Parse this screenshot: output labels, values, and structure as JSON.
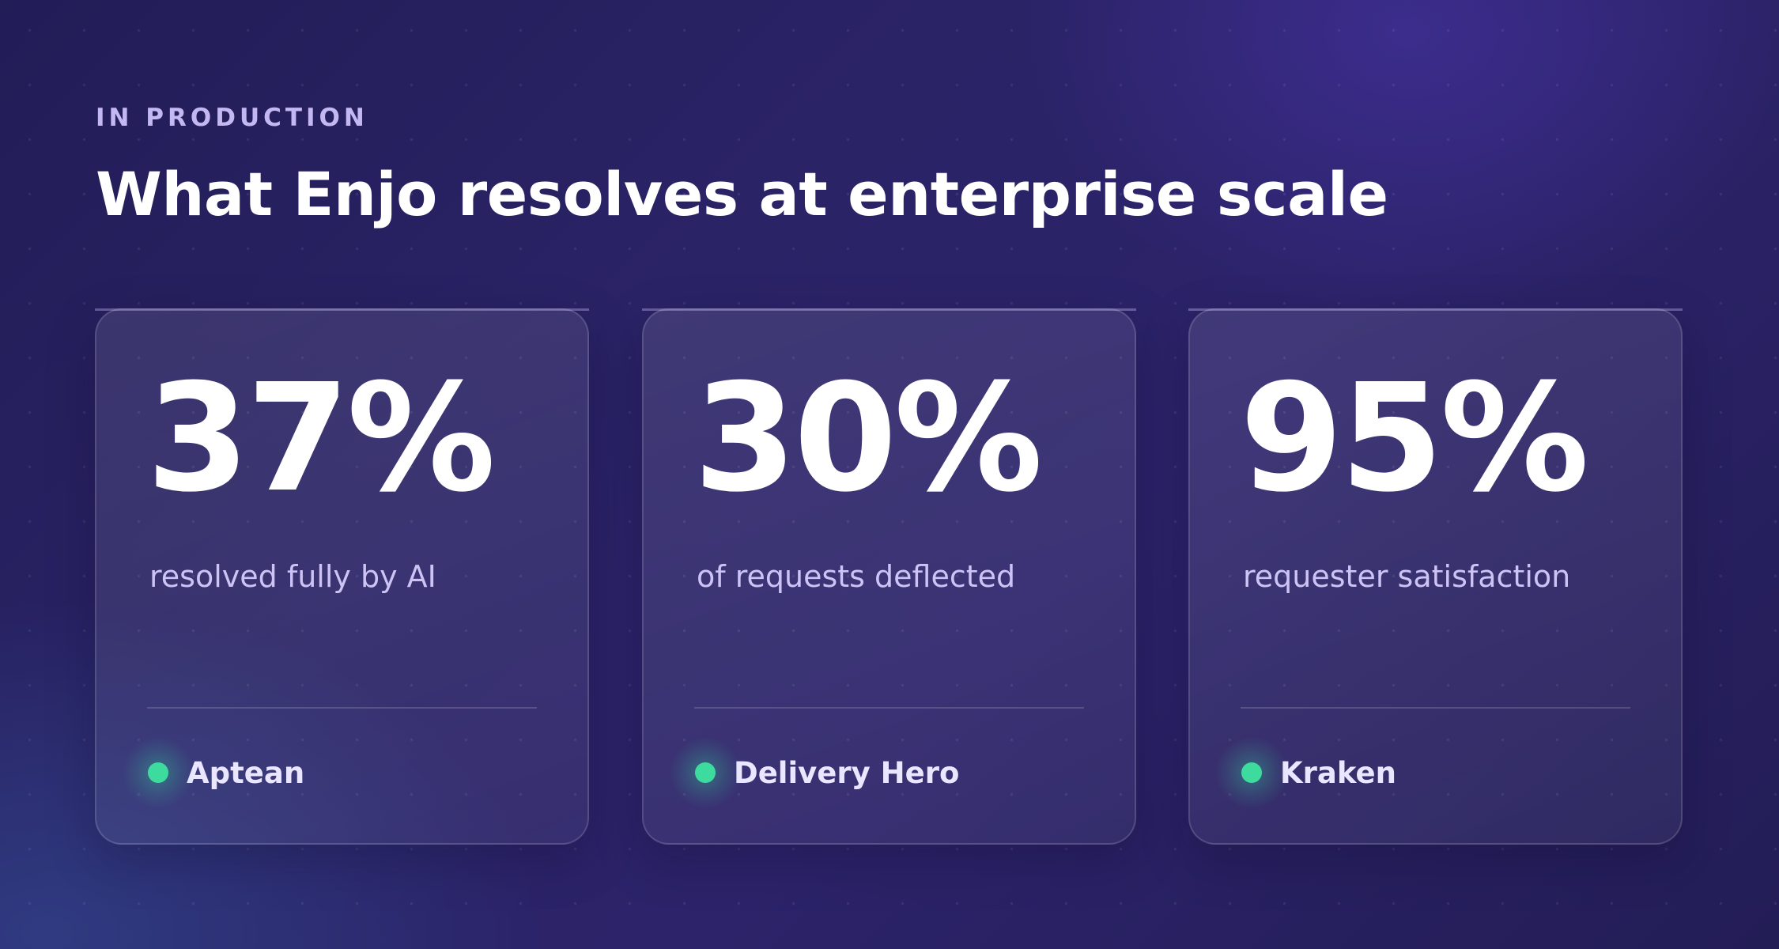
{
  "header": {
    "eyebrow": "IN PRODUCTION",
    "title": "What Enjo resolves at enterprise scale"
  },
  "stats": [
    {
      "value": "37%",
      "label": "resolved fully by AI",
      "company": "Aptean"
    },
    {
      "value": "30%",
      "label": "of requests deflected",
      "company": "Delivery Hero"
    },
    {
      "value": "95%",
      "label": "requester satisfaction",
      "company": "Kraken"
    }
  ],
  "colors": {
    "background": "#2a2366",
    "accent_dot": "#3ddc9e",
    "eyebrow": "#c4b8f2",
    "label": "#cdc3f5"
  },
  "icons": {
    "company_marker": "status-dot-icon"
  }
}
